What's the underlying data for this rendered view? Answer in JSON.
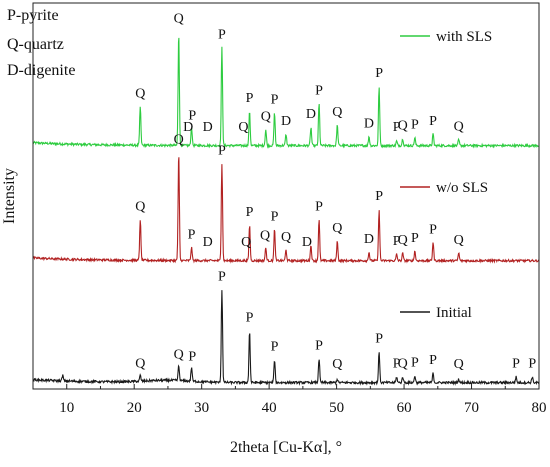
{
  "chart_data": {
    "type": "line",
    "xlabel": "2theta [Cu-Kα], °",
    "ylabel": "Intensity",
    "xlim": [
      5,
      80
    ],
    "x_ticks": [
      10,
      20,
      30,
      40,
      50,
      60,
      70,
      80
    ],
    "grid": false,
    "legend_position": "right, next to each trace",
    "phase_key": [
      "P-pyrite",
      "Q-quartz",
      "D-digenite"
    ],
    "series": [
      {
        "name": "with SLS",
        "color": "#2ecc40",
        "offset": 2,
        "peaks": [
          [
            20.9,
            0.34
          ],
          [
            26.6,
            1.0
          ],
          [
            28.5,
            0.16
          ],
          [
            33.0,
            0.86
          ],
          [
            37.1,
            0.3
          ],
          [
            39.5,
            0.14
          ],
          [
            40.8,
            0.29
          ],
          [
            42.5,
            0.1
          ],
          [
            46.2,
            0.16
          ],
          [
            47.4,
            0.37
          ],
          [
            50.1,
            0.18
          ],
          [
            54.8,
            0.08
          ],
          [
            56.3,
            0.52
          ],
          [
            58.9,
            0.04
          ],
          [
            59.8,
            0.06
          ],
          [
            61.6,
            0.07
          ],
          [
            64.3,
            0.1
          ],
          [
            68.1,
            0.05
          ]
        ]
      },
      {
        "name": "w/o SLS",
        "color": "#b22222",
        "offset": 1,
        "peaks": [
          [
            20.9,
            0.38
          ],
          [
            26.6,
            1.0
          ],
          [
            28.5,
            0.12
          ],
          [
            33.0,
            0.9
          ],
          [
            37.1,
            0.33
          ],
          [
            39.5,
            0.12
          ],
          [
            40.8,
            0.29
          ],
          [
            42.5,
            0.1
          ],
          [
            46.2,
            0.14
          ],
          [
            47.4,
            0.38
          ],
          [
            50.1,
            0.18
          ],
          [
            54.8,
            0.08
          ],
          [
            56.3,
            0.48
          ],
          [
            58.9,
            0.06
          ],
          [
            59.8,
            0.07
          ],
          [
            61.6,
            0.09
          ],
          [
            64.3,
            0.17
          ],
          [
            68.1,
            0.07
          ]
        ]
      },
      {
        "name": "Initial",
        "color": "#1a1a1a",
        "offset": 0,
        "peaks": [
          [
            9.4,
            0.05
          ],
          [
            20.9,
            0.05
          ],
          [
            26.6,
            0.13
          ],
          [
            28.5,
            0.12
          ],
          [
            33.0,
            0.81
          ],
          [
            37.1,
            0.45
          ],
          [
            40.8,
            0.2
          ],
          [
            47.4,
            0.21
          ],
          [
            50.1,
            0.03
          ],
          [
            56.3,
            0.27
          ],
          [
            58.9,
            0.05
          ],
          [
            59.8,
            0.05
          ],
          [
            61.6,
            0.06
          ],
          [
            64.3,
            0.08
          ],
          [
            68.1,
            0.03
          ],
          [
            76.6,
            0.05
          ],
          [
            79.0,
            0.05
          ]
        ]
      }
    ],
    "peak_annotations": [
      {
        "series": "with SLS",
        "labels": [
          [
            "Q",
            20.9
          ],
          [
            "Q",
            26.6
          ],
          [
            "D",
            28.0
          ],
          [
            "P",
            28.6
          ],
          [
            "D",
            30.9
          ],
          [
            "P",
            33.0
          ],
          [
            "Q",
            36.2
          ],
          [
            "P",
            37.1
          ],
          [
            "Q",
            39.5
          ],
          [
            "P",
            40.8
          ],
          [
            "D",
            42.5
          ],
          [
            "D",
            46.2
          ],
          [
            "P",
            47.4
          ],
          [
            "Q",
            50.1
          ],
          [
            "D",
            54.8
          ],
          [
            "P",
            56.3
          ],
          [
            "P",
            58.9
          ],
          [
            "Q",
            59.8
          ],
          [
            "P",
            61.6
          ],
          [
            "P",
            64.3
          ],
          [
            "Q",
            68.1
          ]
        ]
      },
      {
        "series": "w/o SLS",
        "labels": [
          [
            "Q",
            20.9
          ],
          [
            "Q",
            26.6
          ],
          [
            "P",
            28.5
          ],
          [
            "D",
            30.9
          ],
          [
            "P",
            33.0
          ],
          [
            "Q",
            36.6
          ],
          [
            "P",
            37.1
          ],
          [
            "Q",
            39.4
          ],
          [
            "P",
            40.8
          ],
          [
            "Q",
            42.5
          ],
          [
            "D",
            45.6
          ],
          [
            "P",
            47.4
          ],
          [
            "Q",
            50.1
          ],
          [
            "D",
            54.8
          ],
          [
            "P",
            56.3
          ],
          [
            "P",
            58.9
          ],
          [
            "Q",
            59.8
          ],
          [
            "P",
            61.6
          ],
          [
            "P",
            64.3
          ],
          [
            "Q",
            68.1
          ]
        ]
      },
      {
        "series": "Initial",
        "labels": [
          [
            "Q",
            20.9
          ],
          [
            "Q",
            26.6
          ],
          [
            "P",
            28.6
          ],
          [
            "P",
            33.0
          ],
          [
            "P",
            37.1
          ],
          [
            "P",
            40.8
          ],
          [
            "P",
            47.4
          ],
          [
            "Q",
            50.1
          ],
          [
            "P",
            56.3
          ],
          [
            "P",
            58.9
          ],
          [
            "Q",
            59.8
          ],
          [
            "P",
            61.6
          ],
          [
            "P",
            64.3
          ],
          [
            "Q",
            68.1
          ],
          [
            "P",
            76.6
          ],
          [
            "P",
            79.0
          ]
        ]
      }
    ]
  }
}
